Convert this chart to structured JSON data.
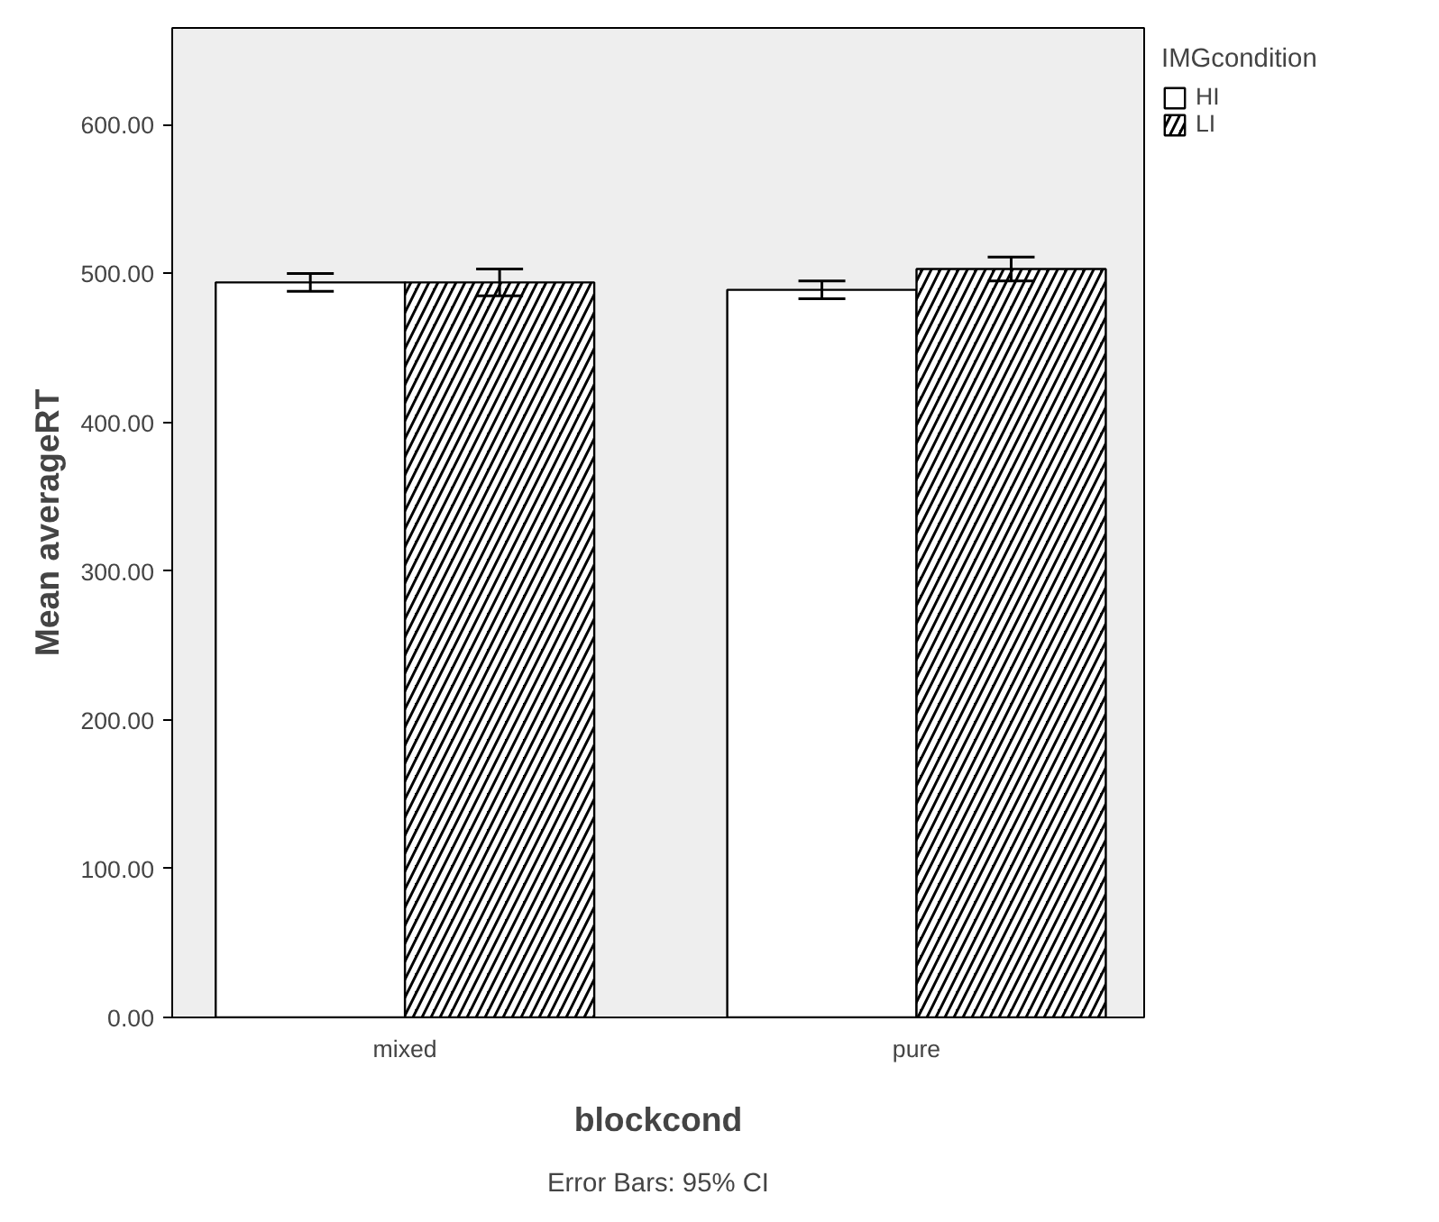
{
  "chart_data": {
    "type": "bar",
    "xlabel": "blockcond",
    "ylabel": "Mean averageRT",
    "legend_title": "IMGcondition",
    "categories": [
      "mixed",
      "pure"
    ],
    "series": [
      {
        "name": "HI",
        "color": "#ffffff",
        "values": [
          494,
          489
        ],
        "errors": [
          6,
          6
        ]
      },
      {
        "name": "LI",
        "color": "#000000",
        "values": [
          494,
          503
        ],
        "errors": [
          9,
          8
        ]
      }
    ],
    "ylim": [
      0,
      665
    ],
    "yticks": [
      {
        "value": 0,
        "label": "0.00"
      },
      {
        "value": 100,
        "label": "100.00"
      },
      {
        "value": 200,
        "label": "200.00"
      },
      {
        "value": 300,
        "label": "300.00"
      },
      {
        "value": 400,
        "label": "400.00"
      },
      {
        "value": 500,
        "label": "500.00"
      },
      {
        "value": 600,
        "label": "600.00"
      }
    ],
    "grid": false,
    "legend": "top right",
    "annotations": [
      "Error Bars: 95% CI"
    ]
  }
}
